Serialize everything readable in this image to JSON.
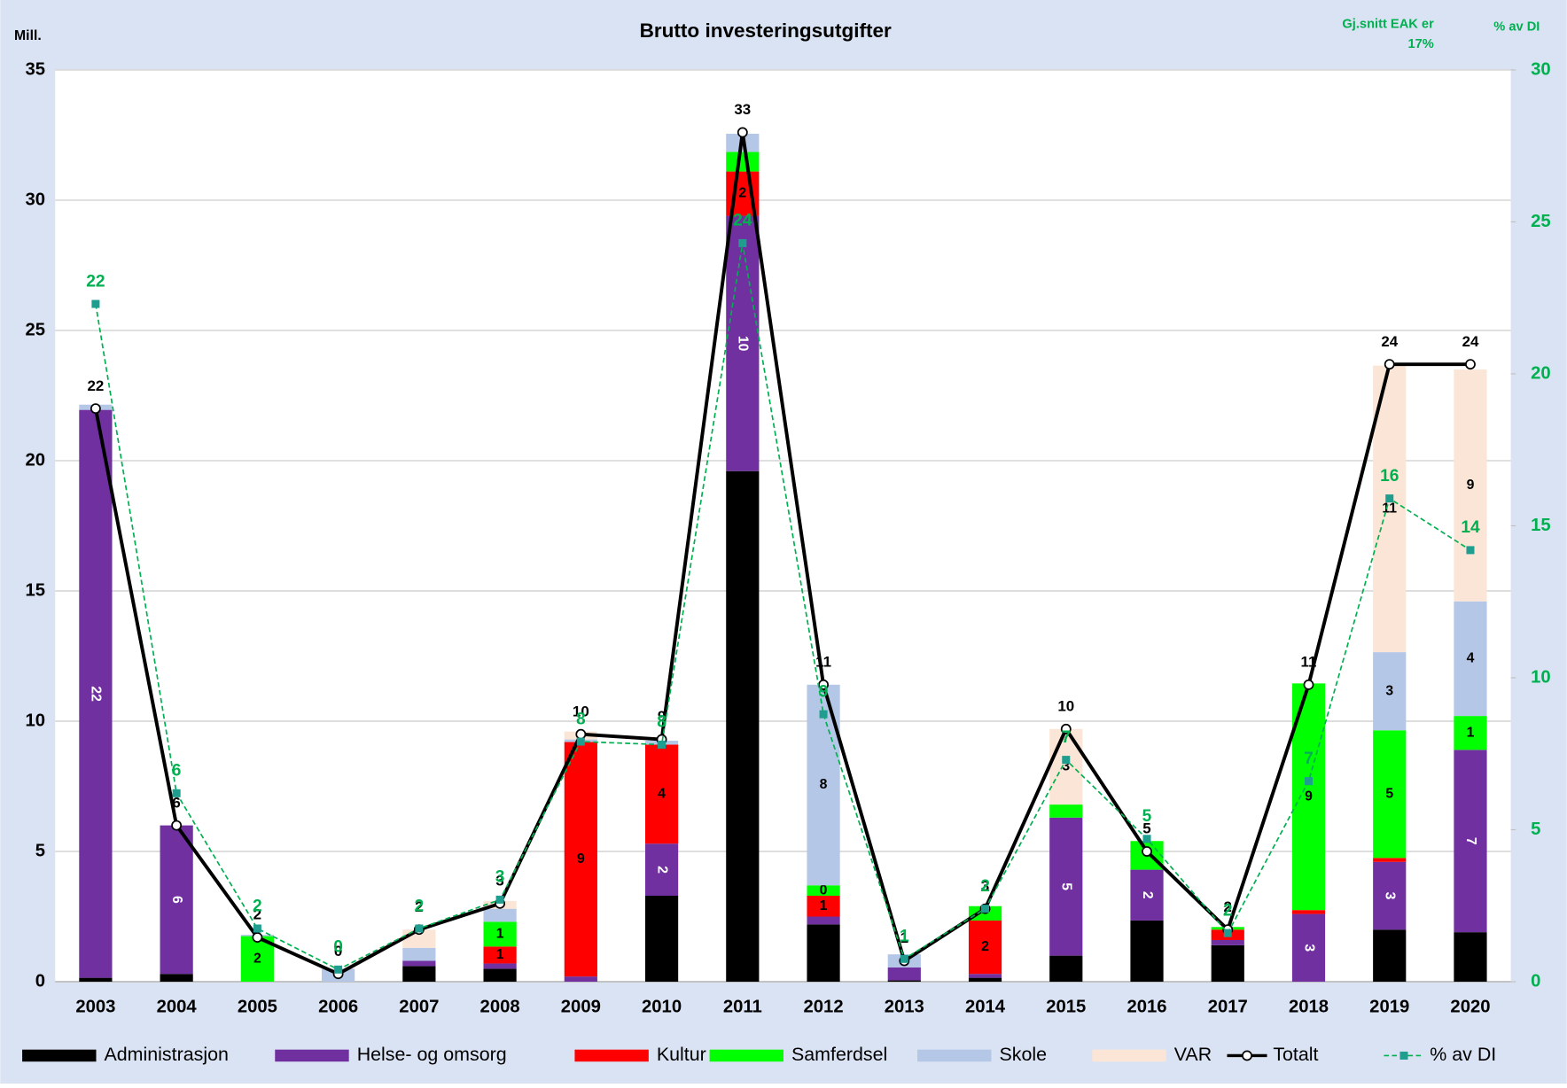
{
  "chart_data": {
    "type": "bar",
    "stacked": true,
    "title": "Brutto investeringsutgifter",
    "y_label": "Mill.",
    "y2_label": "% av DI",
    "annotation": "Gj.snitt EAK er 17%",
    "categories": [
      "2003",
      "2004",
      "2005",
      "2006",
      "2007",
      "2008",
      "2009",
      "2010",
      "2011",
      "2012",
      "2013",
      "2014",
      "2015",
      "2016",
      "2017",
      "2018",
      "2019",
      "2020"
    ],
    "ylim": [
      0,
      35
    ],
    "yticks": [
      0,
      5,
      10,
      15,
      20,
      25,
      30,
      35
    ],
    "y2lim": [
      0,
      30
    ],
    "y2ticks": [
      0,
      5,
      10,
      15,
      20,
      25,
      30
    ],
    "grid": true,
    "legend": "bottom",
    "series": [
      {
        "name": "Administrasjon",
        "color": "#000000",
        "values": [
          0.15,
          0.3,
          0,
          0,
          0.6,
          0.5,
          0,
          3.3,
          19.6,
          2.2,
          0.05,
          0.15,
          1.0,
          2.35,
          1.4,
          0,
          2.0,
          1.9
        ],
        "value_labels": [
          null,
          null,
          null,
          null,
          null,
          null,
          null,
          null,
          null,
          null,
          null,
          null,
          null,
          null,
          null,
          null,
          null,
          null
        ]
      },
      {
        "name": "Helse- og omsorg",
        "color": "#7030a0",
        "values": [
          21.8,
          5.7,
          0,
          0,
          0.2,
          0.2,
          0.2,
          2.0,
          9.8,
          0.3,
          0.5,
          0.15,
          5.3,
          1.95,
          0.2,
          2.6,
          2.6,
          7.0
        ],
        "value_labels": [
          "22",
          "6",
          null,
          null,
          null,
          null,
          null,
          "2",
          "10",
          null,
          null,
          null,
          "5",
          "2",
          null,
          "3",
          "3",
          "7"
        ]
      },
      {
        "name": "Kultur",
        "color": "#ff0000",
        "values": [
          0,
          0,
          0,
          0,
          0,
          0.65,
          9.0,
          3.8,
          1.7,
          0.8,
          0,
          2.05,
          0,
          0,
          0.4,
          0.15,
          0.15,
          0
        ],
        "value_labels": [
          null,
          null,
          null,
          null,
          null,
          "1",
          "9",
          "4",
          "2",
          "1",
          null,
          "2",
          null,
          null,
          null,
          null,
          null,
          null
        ]
      },
      {
        "name": "Samferdsel",
        "color": "#00ff00",
        "values": [
          0,
          0,
          1.75,
          0,
          0,
          0.95,
          0,
          0,
          0.75,
          0.4,
          0,
          0.55,
          0.5,
          1.1,
          0.1,
          8.7,
          4.9,
          1.3
        ],
        "value_labels": [
          null,
          null,
          "2",
          null,
          null,
          "1",
          null,
          null,
          null,
          "0",
          null,
          null,
          null,
          null,
          null,
          "9",
          "5",
          "1"
        ]
      },
      {
        "name": "Skole",
        "color": "#b4c7e7",
        "values": [
          0.2,
          0,
          0.05,
          0.5,
          0.5,
          0.5,
          0.1,
          0.15,
          0.7,
          7.7,
          0.5,
          0,
          0,
          0,
          0,
          0,
          3.0,
          4.4
        ],
        "value_labels": [
          null,
          null,
          null,
          null,
          null,
          null,
          null,
          null,
          null,
          "8",
          null,
          null,
          null,
          null,
          null,
          null,
          "3",
          "4"
        ]
      },
      {
        "name": "VAR",
        "color": "#fbe5d6",
        "values": [
          0,
          0,
          0,
          0,
          0.7,
          0.3,
          0.3,
          0,
          0,
          0,
          0,
          0,
          2.9,
          0,
          0,
          0,
          11.0,
          8.9
        ],
        "value_labels": [
          null,
          null,
          null,
          null,
          null,
          null,
          null,
          null,
          null,
          null,
          null,
          null,
          "3",
          null,
          null,
          null,
          "11",
          "9"
        ]
      },
      {
        "name": "Totalt",
        "type": "line",
        "color": "#000000",
        "values": [
          22.0,
          6.0,
          1.7,
          0.3,
          2.0,
          3.0,
          9.5,
          9.3,
          32.6,
          11.4,
          0.8,
          2.8,
          9.7,
          5.0,
          2.0,
          11.4,
          23.7,
          23.7
        ],
        "value_labels": [
          "22",
          "6",
          "2",
          "0",
          "2",
          "3",
          "10",
          "9",
          "33",
          "11",
          "1",
          "3",
          "10",
          "5",
          "2",
          "11",
          "24",
          "24"
        ]
      },
      {
        "name": "% av DI",
        "type": "line",
        "axis": "y2",
        "color": "#00b050",
        "values": [
          22.3,
          6.2,
          1.75,
          0.4,
          1.75,
          2.7,
          7.9,
          7.8,
          24.3,
          8.8,
          0.75,
          2.4,
          7.3,
          4.7,
          1.6,
          6.6,
          15.9,
          14.2
        ],
        "value_labels": [
          "22",
          "6",
          "2",
          "0",
          "2",
          "3",
          "8",
          "8",
          "24",
          "9",
          "1",
          "2",
          "7",
          "5",
          "2",
          "7",
          "16",
          "14"
        ]
      }
    ]
  }
}
